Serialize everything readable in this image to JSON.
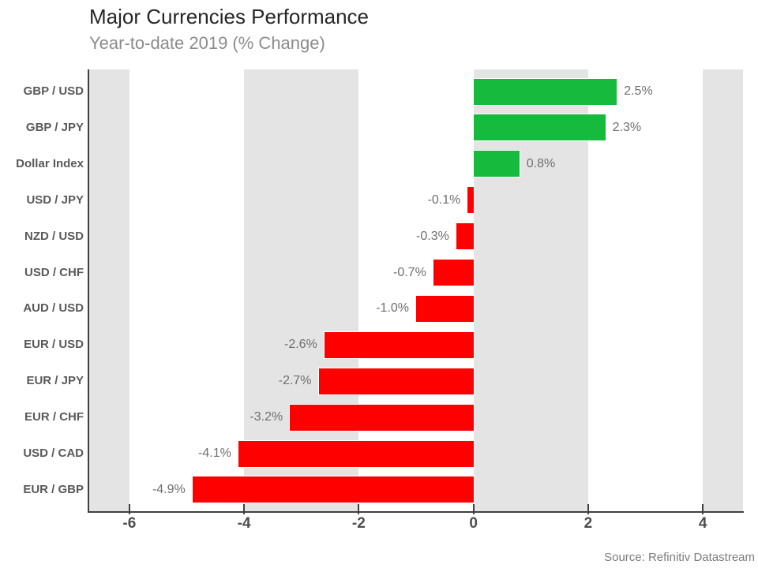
{
  "header": {
    "title": "Major Currencies Performance",
    "subtitle": "Year-to-date 2019 (% Change)"
  },
  "footer": {
    "source": "Source: Refinitiv Datastream"
  },
  "chart_data": {
    "type": "bar",
    "orientation": "horizontal",
    "title": "Major Currencies Performance",
    "subtitle": "Year-to-date 2019 (% Change)",
    "categories": [
      "GBP / USD",
      "GBP / JPY",
      "Dollar Index",
      "USD / JPY",
      "NZD / USD",
      "USD / CHF",
      "AUD / USD",
      "EUR / USD",
      "EUR / JPY",
      "EUR / CHF",
      "USD / CAD",
      "EUR / GBP"
    ],
    "values": [
      2.5,
      2.3,
      0.8,
      -0.1,
      -0.3,
      -0.7,
      -1.0,
      -2.6,
      -2.7,
      -3.2,
      -4.1,
      -4.9
    ],
    "value_labels": [
      "2.5%",
      "2.3%",
      "0.8%",
      "-0.1%",
      "-0.3%",
      "-0.7%",
      "-1.0%",
      "-2.6%",
      "-2.7%",
      "-3.2%",
      "-4.1%",
      "-4.9%"
    ],
    "xlabel": "",
    "ylabel": "",
    "xlim": [
      -6.7,
      4.7
    ],
    "x_ticks": [
      -6,
      -4,
      -2,
      0,
      2,
      4
    ],
    "x_tick_labels": [
      "-6",
      "-4",
      "-2",
      "0",
      "2",
      "4"
    ],
    "legend": "none",
    "grid_bands": [
      [
        -6.7,
        -6
      ],
      [
        -4,
        -2
      ],
      [
        0,
        2
      ],
      [
        4,
        4.7
      ]
    ],
    "colors": {
      "positive": "#16ba3d",
      "negative": "#ff0000",
      "band": "#e4e4e4",
      "axis": "#404040",
      "category_label": "#595959",
      "value_label": "#6f6f6f",
      "tick_label": "#4d4d4d",
      "title": "#262626",
      "subtitle": "#8c8c8c",
      "source": "#7c7c7c"
    }
  }
}
